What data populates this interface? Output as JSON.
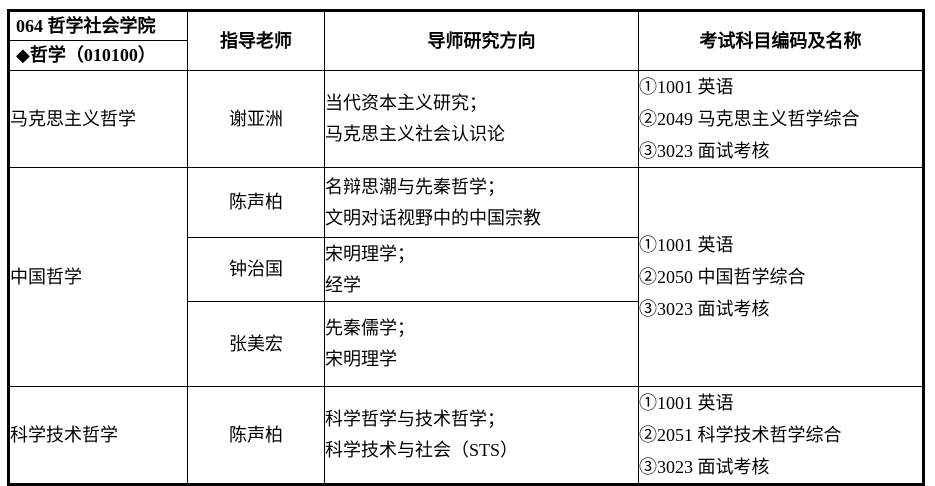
{
  "colors": {
    "background": "#ffffff",
    "border": "#000000",
    "text": "#000000"
  },
  "header": {
    "college": "064 哲学社会学院",
    "major": "◆哲学（010100）",
    "columns": [
      "指导老师",
      "导师研究方向",
      "考试科目编码及名称"
    ]
  },
  "sections": [
    {
      "category": "马克思主义哲学",
      "rows": [
        {
          "advisor": "谢亚洲",
          "directions": [
            "当代资本主义研究；",
            "马克思主义社会认识论"
          ]
        }
      ],
      "exams": [
        "①1001 英语",
        "②2049 马克思主义哲学综合",
        "③3023 面试考核"
      ]
    },
    {
      "category": "中国哲学",
      "rows": [
        {
          "advisor": "陈声柏",
          "directions": [
            "名辩思潮与先秦哲学；",
            "文明对话视野中的中国宗教"
          ]
        },
        {
          "advisor": "钟治国",
          "directions": [
            "宋明理学；",
            "经学"
          ]
        },
        {
          "advisor": "张美宏",
          "directions": [
            "先秦儒学；",
            "宋明理学"
          ]
        }
      ],
      "exams": [
        "①1001 英语",
        "②2050 中国哲学综合",
        "③3023 面试考核"
      ]
    },
    {
      "category": "科学技术哲学",
      "rows": [
        {
          "advisor": "陈声柏",
          "directions": [
            "科学哲学与技术哲学；",
            "科学技术与社会（STS）"
          ]
        }
      ],
      "exams": [
        "①1001 英语",
        "②2051 科学技术哲学综合",
        "③3023 面试考核"
      ]
    }
  ]
}
